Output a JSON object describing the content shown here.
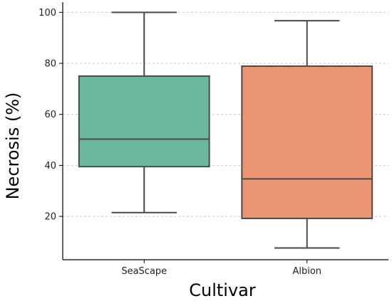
{
  "chart_data": {
    "type": "boxplot",
    "title": "",
    "xlabel": "Cultivar",
    "ylabel": "Necrosis (%)",
    "ylim": [
      3,
      104
    ],
    "yticks": [
      20,
      40,
      60,
      80,
      100
    ],
    "grid": "y-dashed",
    "categories": [
      "SeaScape",
      "Albion"
    ],
    "boxes": [
      {
        "category": "SeaScape",
        "min": 21.5,
        "q1": 39.5,
        "median": 50.3,
        "q3": 75.0,
        "max": 100.0,
        "color": "#6db7a1"
      },
      {
        "category": "Albion",
        "min": 7.6,
        "q1": 19.2,
        "median": 34.7,
        "q3": 78.9,
        "max": 96.7,
        "color": "#ea9675"
      }
    ]
  }
}
